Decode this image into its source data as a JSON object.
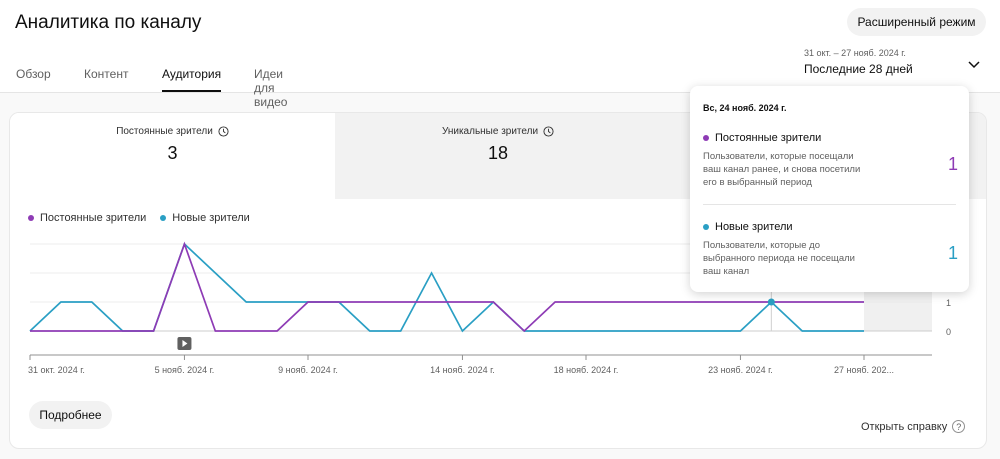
{
  "header": {
    "title": "Аналитика по каналу",
    "advanced_mode": "Расширенный режим",
    "tabs": [
      {
        "label": "Обзор",
        "active": false
      },
      {
        "label": "Контент",
        "active": false
      },
      {
        "label": "Аудитория",
        "active": true
      },
      {
        "label": "Идеи для видео",
        "active": false
      }
    ],
    "date_range_sub": "31 окт. – 27 нояб. 2024 г.",
    "date_range_main": "Последние 28 дней"
  },
  "metrics": [
    {
      "label": "Постоянные зрители",
      "value": "3"
    },
    {
      "label": "Уникальные зрители",
      "value": "18"
    }
  ],
  "legend": [
    {
      "name": "Постоянные зрители",
      "color": "#8e3bb5"
    },
    {
      "name": "Новые зрители",
      "color": "#2a9fc4"
    }
  ],
  "chart_data": {
    "type": "line",
    "x": [
      "31 окт.",
      "1 нояб.",
      "2 нояб.",
      "3 нояб.",
      "4 нояб.",
      "5 нояб.",
      "6 нояб.",
      "7 нояб.",
      "8 нояб.",
      "9 нояб.",
      "10 нояб.",
      "11 нояб.",
      "12 нояб.",
      "13 нояб.",
      "14 нояб.",
      "15 нояб.",
      "16 нояб.",
      "17 нояб.",
      "18 нояб.",
      "19 нояб.",
      "20 нояб.",
      "21 нояб.",
      "22 нояб.",
      "23 нояб.",
      "24 нояб.",
      "25 нояб.",
      "26 нояб.",
      "27 нояб."
    ],
    "series": [
      {
        "name": "Постоянные зрители",
        "color": "#8e3bb5",
        "values": [
          0,
          0,
          0,
          0,
          0,
          3,
          0,
          0,
          0,
          1,
          1,
          1,
          1,
          1,
          1,
          1,
          0,
          1,
          1,
          1,
          1,
          1,
          1,
          1,
          1,
          1,
          1,
          1
        ]
      },
      {
        "name": "Новые зрители",
        "color": "#2a9fc4",
        "values": [
          0,
          1,
          1,
          0,
          0,
          3,
          2,
          1,
          1,
          1,
          1,
          0,
          0,
          2,
          0,
          1,
          0,
          0,
          0,
          0,
          0,
          0,
          0,
          0,
          1,
          0,
          0,
          0
        ]
      }
    ],
    "x_tick_labels": [
      "31 окт. 2024 г.",
      "5 нояб. 2024 г.",
      "9 нояб. 2024 г.",
      "14 нояб. 2024 г.",
      "18 нояб. 2024 г.",
      "23 нояб. 2024 г.",
      "27 нояб. 202..."
    ],
    "x_tick_indices": [
      0,
      5,
      9,
      14,
      18,
      23,
      27
    ],
    "y_tick_labels": [
      "1",
      "0"
    ],
    "ylim": [
      0,
      3
    ],
    "grid": true,
    "highlight_index": 24,
    "video_marker_index": 5
  },
  "tooltip": {
    "date": "Вс, 24 нояб. 2024 г.",
    "items": [
      {
        "name": "Постоянные зрители",
        "desc": "Пользователи, которые посещали ваш канал ранее, и снова посетили его в выбранный период",
        "value": "1",
        "color": "#8e3bb5"
      },
      {
        "name": "Новые зрители",
        "desc": "Пользователи, которые до выбранного периода не посещали ваш канал",
        "value": "1",
        "color": "#2a9fc4"
      }
    ]
  },
  "footer": {
    "more_button": "Подробнее",
    "help_link": "Открыть справку",
    "help_icon": "?"
  }
}
